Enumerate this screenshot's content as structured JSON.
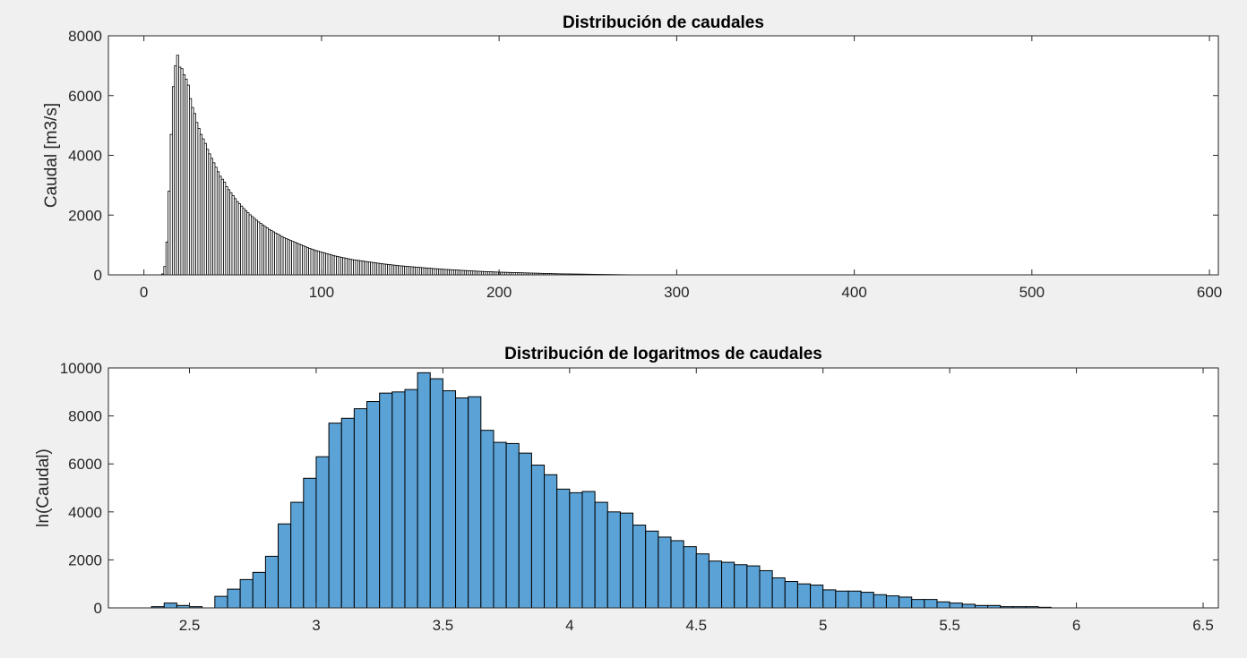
{
  "chart_data": [
    {
      "type": "bar",
      "title": "Distribución de caudales",
      "xlabel": "",
      "ylabel": "Caudal [m3/s]",
      "xlim": [
        -20,
        605
      ],
      "ylim": [
        0,
        8000
      ],
      "xticks": [
        0,
        100,
        200,
        300,
        400,
        500,
        600
      ],
      "yticks": [
        0,
        2000,
        4000,
        6000,
        8000
      ],
      "grid": false,
      "bar_color": "#ffffff",
      "edge_color": "#000000",
      "bin_start": 10.0,
      "bin_width": 1.2,
      "values": [
        30,
        280,
        1100,
        2800,
        4700,
        6300,
        7000,
        7350,
        6950,
        6900,
        6700,
        6550,
        6350,
        5900,
        5600,
        5400,
        5100,
        4900,
        4700,
        4550,
        4400,
        4200,
        4050,
        3900,
        3750,
        3600,
        3450,
        3300,
        3200,
        3100,
        2950,
        2850,
        2750,
        2650,
        2550,
        2450,
        2380,
        2300,
        2220,
        2150,
        2080,
        2010,
        1950,
        1890,
        1830,
        1770,
        1720,
        1670,
        1620,
        1570,
        1520,
        1480,
        1440,
        1400,
        1360,
        1320,
        1280,
        1240,
        1210,
        1180,
        1150,
        1120,
        1090,
        1060,
        1030,
        1000,
        970,
        940,
        910,
        885,
        860,
        835,
        810,
        790,
        770,
        750,
        730,
        710,
        690,
        670,
        650,
        630,
        615,
        600,
        585,
        570,
        555,
        540,
        525,
        510,
        500,
        490,
        480,
        470,
        460,
        450,
        440,
        430,
        420,
        410,
        400,
        390,
        380,
        370,
        362,
        354,
        346,
        338,
        330,
        322,
        314,
        306,
        300,
        294,
        288,
        282,
        276,
        270,
        264,
        258,
        252,
        246,
        240,
        234,
        228,
        222,
        216,
        210,
        205,
        200,
        195,
        190,
        185,
        180,
        176,
        172,
        168,
        164,
        160,
        156,
        152,
        148,
        144,
        140,
        136,
        132,
        128,
        124,
        120,
        117,
        114,
        111,
        108,
        105,
        102,
        99,
        96,
        93,
        90,
        88,
        86,
        84,
        82,
        80,
        78,
        76,
        74,
        72,
        70,
        68,
        66,
        64,
        62,
        60,
        58,
        56,
        54,
        52,
        50,
        48,
        46,
        44,
        42,
        40,
        38,
        36,
        35,
        34,
        33,
        32,
        31,
        30,
        29,
        28,
        27,
        26,
        25,
        24,
        23,
        22,
        21,
        20,
        19,
        18,
        17,
        16,
        15,
        14,
        13,
        12,
        11,
        10,
        9,
        8,
        7,
        6,
        5,
        5,
        4,
        4,
        3,
        3,
        2,
        2,
        1,
        1
      ]
    },
    {
      "type": "bar",
      "title": "Distribución de logaritmos de caudales",
      "xlabel": "",
      "ylabel": "ln(Caudal)",
      "xlim": [
        2.18,
        6.56
      ],
      "ylim": [
        0,
        10000
      ],
      "xticks": [
        "2.5",
        "3",
        "3.5",
        "4",
        "4.5",
        "5",
        "5.5",
        "6",
        "6.5"
      ],
      "yticks": [
        0,
        2000,
        4000,
        6000,
        8000,
        10000
      ],
      "grid": false,
      "bar_color": "#5ba3d6",
      "edge_color": "#000000",
      "bin_start": 2.35,
      "bin_width": 0.05,
      "values": [
        50,
        200,
        100,
        50,
        0,
        480,
        780,
        1180,
        1480,
        2150,
        3500,
        4400,
        5400,
        6300,
        7700,
        7900,
        8300,
        8600,
        8950,
        9000,
        9100,
        9800,
        9550,
        9050,
        8750,
        8800,
        7400,
        6900,
        6850,
        6450,
        5950,
        5550,
        4950,
        4800,
        4850,
        4400,
        4000,
        3950,
        3450,
        3200,
        2950,
        2800,
        2550,
        2250,
        1950,
        1900,
        1800,
        1750,
        1550,
        1250,
        1100,
        1000,
        950,
        750,
        700,
        700,
        650,
        550,
        500,
        450,
        350,
        350,
        250,
        200,
        150,
        100,
        100,
        50,
        50,
        50,
        25
      ]
    }
  ]
}
